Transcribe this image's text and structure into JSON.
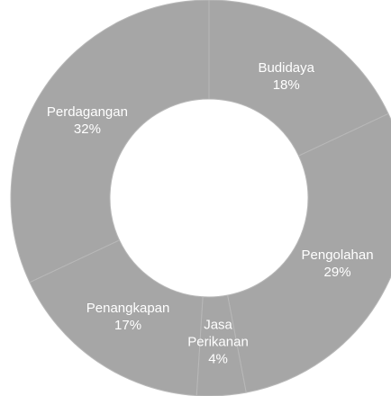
{
  "chart_data": {
    "type": "donut",
    "categories": [
      "Budidaya",
      "Pengolahan",
      "Jasa Perikanan",
      "Penangkapan",
      "Perdagangan"
    ],
    "values": [
      18,
      29,
      4,
      17,
      32
    ],
    "value_labels": [
      "18%",
      "29%",
      "4%",
      "17%",
      "32%"
    ],
    "color": "#a6a6a6"
  }
}
